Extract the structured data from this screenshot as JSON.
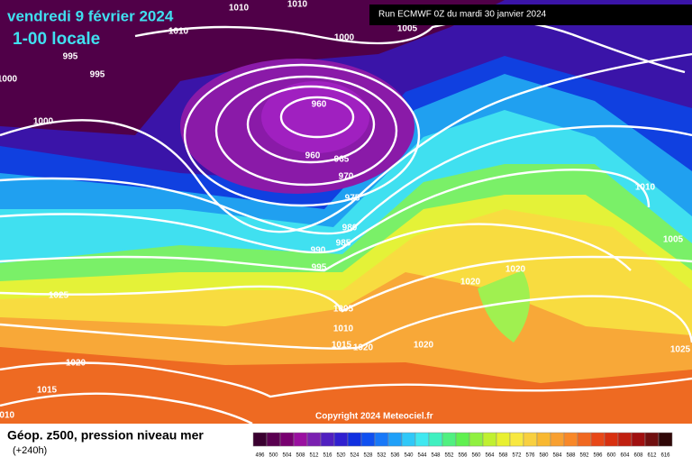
{
  "header": {
    "date": "vendredi 9 février 2024",
    "time": "1-00 locale",
    "run": "Run ECMWF 0Z du mardi 30 janvier 2024",
    "copyright": "Copyright 2024 Meteociel.fr"
  },
  "footer": {
    "title": "Géop. z500, pression niveau mer",
    "lead": "(+240h)"
  },
  "isobar_labels": [
    1010,
    1010,
    1010,
    1005,
    1000,
    995,
    995,
    1000,
    1000,
    960,
    960,
    965,
    970,
    975,
    980,
    985,
    990,
    995,
    1010,
    1005,
    1020,
    1020,
    1025,
    1005,
    1010,
    1015,
    1020,
    1020,
    1025,
    1020,
    1015,
    1010
  ],
  "legend": {
    "values": [
      496,
      500,
      504,
      508,
      512,
      516,
      520,
      524,
      528,
      532,
      536,
      540,
      544,
      548,
      552,
      556,
      560,
      564,
      568,
      572,
      576,
      580,
      584,
      588,
      592,
      596,
      600,
      604,
      608,
      612,
      616
    ],
    "colors": [
      "#3a0030",
      "#5a0050",
      "#780070",
      "#9a10a0",
      "#7a20b0",
      "#5020c0",
      "#3020d0",
      "#1030e0",
      "#1050f0",
      "#1878f8",
      "#20a0f8",
      "#30c8f8",
      "#40e8f0",
      "#40f0c0",
      "#50f080",
      "#60f050",
      "#90f040",
      "#c0f030",
      "#e8f030",
      "#f8e840",
      "#f8d040",
      "#f8b830",
      "#f8a030",
      "#f88828",
      "#f06820",
      "#e84818",
      "#d83010",
      "#c02010",
      "#a01010",
      "#701010",
      "#300808"
    ]
  }
}
